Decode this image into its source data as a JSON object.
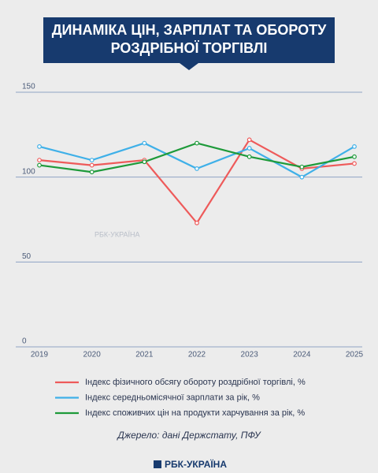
{
  "chart_data": {
    "type": "line",
    "title": [
      "ДИНАМІКА ЦІН, ЗАРПЛАТ ТА ОБОРОТУ",
      "РОЗДРІБНОЇ ТОРГІВЛІ"
    ],
    "categories": [
      "2019",
      "2020",
      "2021",
      "2022",
      "2023",
      "2024",
      "2025"
    ],
    "series": [
      {
        "name": "Індекс фізичного обсягу обороту роздрібної торгівлі, %",
        "color": "#ee5a5a",
        "values": [
          110,
          107,
          110,
          73,
          122,
          105,
          108
        ]
      },
      {
        "name": "Індекс середньомісячної зарплати за рік, %",
        "color": "#3fb0e8",
        "values": [
          118,
          110,
          120,
          105,
          117,
          100,
          118
        ]
      },
      {
        "name": "Індекс споживчих цін на продукти харчування за рік, %",
        "color": "#1e9a3a",
        "values": [
          107,
          103,
          109,
          120,
          112,
          106,
          112
        ]
      }
    ],
    "ylim": [
      0,
      150
    ],
    "yticks": [
      0,
      50,
      100,
      150
    ],
    "grid": true,
    "watermark": "РБК-УКРАЇНА",
    "source": "Джерело: дані Держстату, ПФУ",
    "logo": "РБК-УКРАЇНА"
  }
}
